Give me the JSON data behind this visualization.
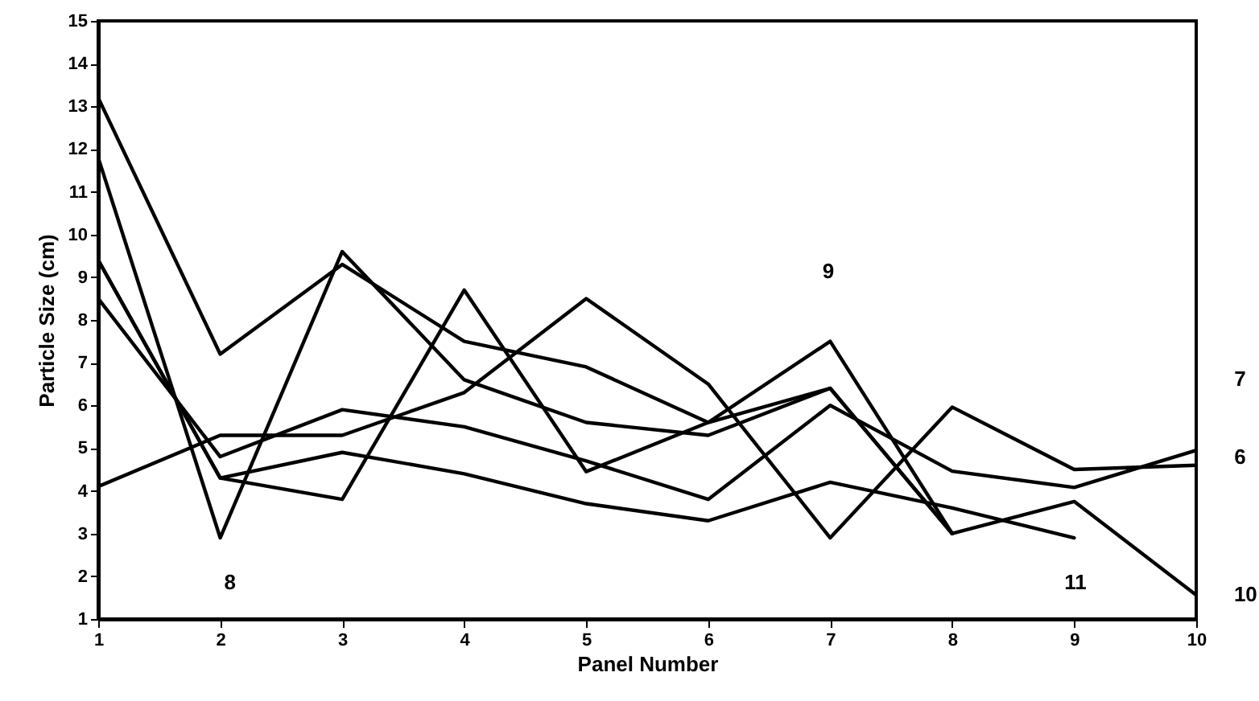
{
  "chart_data": {
    "type": "line",
    "xlabel": "Panel Number",
    "ylabel": "Particle Size (cm)",
    "x": [
      1,
      2,
      3,
      4,
      5,
      6,
      7,
      8,
      9,
      10
    ],
    "series": [
      {
        "color": "#000000",
        "values": [
          13.2,
          7.2,
          9.3,
          7.5,
          6.9,
          5.6,
          7.5,
          3.0,
          null,
          null
        ]
      },
      {
        "color": "#000000",
        "values": [
          11.8,
          2.9,
          9.6,
          6.6,
          5.6,
          5.3,
          6.4,
          3.0,
          3.75,
          1.56
        ]
      },
      {
        "color": "#000000",
        "values": [
          9.4,
          4.3,
          3.8,
          8.7,
          4.45,
          5.6,
          6.4,
          3.0,
          null,
          null
        ]
      },
      {
        "color": "#000000",
        "values": [
          8.5,
          4.8,
          5.9,
          5.5,
          4.7,
          3.8,
          6.0,
          4.46,
          4.08,
          4.95
        ]
      },
      {
        "color": "#000000",
        "values": [
          4.1,
          5.3,
          5.3,
          6.3,
          8.5,
          6.5,
          2.9,
          5.96,
          4.5,
          4.6
        ]
      },
      {
        "color": "#000000",
        "values": [
          9.4,
          4.3,
          4.9,
          4.4,
          3.7,
          3.3,
          4.2,
          3.6,
          2.9,
          null
        ]
      }
    ],
    "xlim": [
      1,
      10
    ],
    "xticks": [
      1,
      2,
      3,
      4,
      5,
      6,
      7,
      8,
      9,
      10
    ],
    "ylim": [
      1,
      15
    ],
    "yticks": [
      1,
      2,
      3,
      4,
      5,
      6,
      7,
      8,
      9,
      10,
      11,
      12,
      13,
      14,
      15
    ],
    "grid": false,
    "marker": "none",
    "line_style": "solid",
    "annotations": [
      "8",
      "9",
      "11",
      "7",
      "6",
      "10"
    ]
  }
}
